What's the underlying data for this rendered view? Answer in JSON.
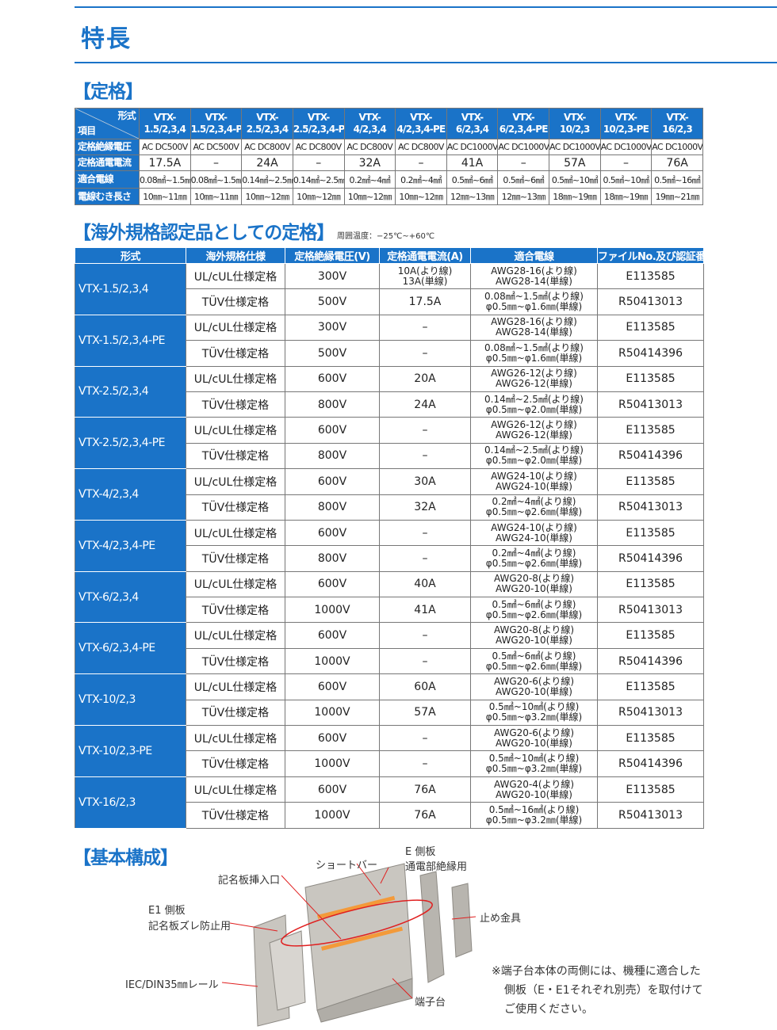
{
  "page_title": "特長",
  "section1": "【定格】",
  "spec_table": {
    "corner_top": "形式",
    "corner_bottom": "項目",
    "models": [
      [
        "VTX-",
        "1.5/2,3,4"
      ],
      [
        "VTX-",
        "1.5/2,3,4-PE"
      ],
      [
        "VTX-",
        "2.5/2,3,4"
      ],
      [
        "VTX-",
        "2.5/2,3,4-PE"
      ],
      [
        "VTX-",
        "4/2,3,4"
      ],
      [
        "VTX-",
        "4/2,3,4-PE"
      ],
      [
        "VTX-",
        "6/2,3,4"
      ],
      [
        "VTX-",
        "6/2,3,4-PE"
      ],
      [
        "VTX-",
        "10/2,3"
      ],
      [
        "VTX-",
        "10/2,3-PE"
      ],
      [
        "VTX-",
        "16/2,3"
      ]
    ],
    "rows": [
      {
        "label": "定格絶縁電圧",
        "values": [
          "AC DC500V",
          "AC DC500V",
          "AC DC800V",
          "AC DC800V",
          "AC DC800V",
          "AC DC800V",
          "AC DC1000V",
          "AC DC1000V",
          "AC DC1000V",
          "AC DC1000V",
          "AC DC1000V"
        ]
      },
      {
        "label": "定格通電電流",
        "values": [
          "17.5A",
          "–",
          "24A",
          "–",
          "32A",
          "–",
          "41A",
          "–",
          "57A",
          "–",
          "76A"
        ]
      },
      {
        "label": "適合電線",
        "values": [
          "0.08㎟~1.5㎟",
          "0.08㎟~1.5㎟",
          "0.14㎟~2.5㎟",
          "0.14㎟~2.5㎟",
          "0.2㎟~4㎟",
          "0.2㎟~4㎟",
          "0.5㎟~6㎟",
          "0.5㎟~6㎟",
          "0.5㎟~10㎟",
          "0.5㎟~10㎟",
          "0.5㎟~16㎟"
        ]
      },
      {
        "label": "電線むき長さ",
        "values": [
          "10㎜~11㎜",
          "10㎜~11㎜",
          "10㎜~12㎜",
          "10㎜~12㎜",
          "10㎜~12㎜",
          "10㎜~12㎜",
          "12㎜~13㎜",
          "12㎜~13㎜",
          "18㎜~19㎜",
          "18㎜~19㎜",
          "19㎜~21㎜"
        ]
      }
    ]
  },
  "section2": "【海外規格認定品としての定格】",
  "ambient_note": "周囲温度：−25℃~+60℃",
  "cert_table": {
    "headers": [
      "形式",
      "海外規格仕様",
      "定格絶縁電圧(V)",
      "定格通電電流(A)",
      "適合電線",
      "ファイルNo.及び認証番号"
    ],
    "groups": [
      {
        "model": "VTX-1.5/2,3,4",
        "rows": [
          {
            "spec": "UL/cUL仕様定格",
            "voltage": "300V",
            "current": [
              "10A(より線)",
              "13A(単線)"
            ],
            "wire": [
              "AWG28-16(より線)",
              "AWG28-14(単線)"
            ],
            "file": "E113585"
          },
          {
            "spec": "TÜV仕様定格",
            "voltage": "500V",
            "current": [
              "17.5A"
            ],
            "wire": [
              "0.08㎟~1.5㎟(より線)",
              "φ0.5㎜~φ1.6㎜(単線)"
            ],
            "file": "R50413013"
          }
        ]
      },
      {
        "model": "VTX-1.5/2,3,4-PE",
        "rows": [
          {
            "spec": "UL/cUL仕様定格",
            "voltage": "300V",
            "current": [
              "–"
            ],
            "wire": [
              "AWG28-16(より線)",
              "AWG28-14(単線)"
            ],
            "file": "E113585"
          },
          {
            "spec": "TÜV仕様定格",
            "voltage": "500V",
            "current": [
              "–"
            ],
            "wire": [
              "0.08㎟~1.5㎟(より線)",
              "φ0.5㎜~φ1.6㎜(単線)"
            ],
            "file": "R50414396"
          }
        ]
      },
      {
        "model": "VTX-2.5/2,3,4",
        "rows": [
          {
            "spec": "UL/cUL仕様定格",
            "voltage": "600V",
            "current": [
              "20A"
            ],
            "wire": [
              "AWG26-12(より線)",
              "AWG26-12(単線)"
            ],
            "file": "E113585"
          },
          {
            "spec": "TÜV仕様定格",
            "voltage": "800V",
            "current": [
              "24A"
            ],
            "wire": [
              "0.14㎟~2.5㎟(より線)",
              "φ0.5㎜~φ2.0㎜(単線)"
            ],
            "file": "R50413013"
          }
        ]
      },
      {
        "model": "VTX-2.5/2,3,4-PE",
        "rows": [
          {
            "spec": "UL/cUL仕様定格",
            "voltage": "600V",
            "current": [
              "–"
            ],
            "wire": [
              "AWG26-12(より線)",
              "AWG26-12(単線)"
            ],
            "file": "E113585"
          },
          {
            "spec": "TÜV仕様定格",
            "voltage": "800V",
            "current": [
              "–"
            ],
            "wire": [
              "0.14㎟~2.5㎟(より線)",
              "φ0.5㎜~φ2.0㎜(単線)"
            ],
            "file": "R50414396"
          }
        ]
      },
      {
        "model": "VTX-4/2,3,4",
        "rows": [
          {
            "spec": "UL/cUL仕様定格",
            "voltage": "600V",
            "current": [
              "30A"
            ],
            "wire": [
              "AWG24-10(より線)",
              "AWG24-10(単線)"
            ],
            "file": "E113585"
          },
          {
            "spec": "TÜV仕様定格",
            "voltage": "800V",
            "current": [
              "32A"
            ],
            "wire": [
              "0.2㎟~4㎟(より線)",
              "φ0.5㎜~φ2.6㎜(単線)"
            ],
            "file": "R50413013"
          }
        ]
      },
      {
        "model": "VTX-4/2,3,4-PE",
        "rows": [
          {
            "spec": "UL/cUL仕様定格",
            "voltage": "600V",
            "current": [
              "–"
            ],
            "wire": [
              "AWG24-10(より線)",
              "AWG24-10(単線)"
            ],
            "file": "E113585"
          },
          {
            "spec": "TÜV仕様定格",
            "voltage": "800V",
            "current": [
              "–"
            ],
            "wire": [
              "0.2㎟~4㎟(より線)",
              "φ0.5㎜~φ2.6㎜(単線)"
            ],
            "file": "R50414396"
          }
        ]
      },
      {
        "model": "VTX-6/2,3,4",
        "rows": [
          {
            "spec": "UL/cUL仕様定格",
            "voltage": "600V",
            "current": [
              "40A"
            ],
            "wire": [
              "AWG20-8(より線)",
              "AWG20-10(単線)"
            ],
            "file": "E113585"
          },
          {
            "spec": "TÜV仕様定格",
            "voltage": "1000V",
            "current": [
              "41A"
            ],
            "wire": [
              "0.5㎟~6㎟(より線)",
              "φ0.5㎜~φ2.6㎜(単線)"
            ],
            "file": "R50413013"
          }
        ]
      },
      {
        "model": "VTX-6/2,3,4-PE",
        "rows": [
          {
            "spec": "UL/cUL仕様定格",
            "voltage": "600V",
            "current": [
              "–"
            ],
            "wire": [
              "AWG20-8(より線)",
              "AWG20-10(単線)"
            ],
            "file": "E113585"
          },
          {
            "spec": "TÜV仕様定格",
            "voltage": "1000V",
            "current": [
              "–"
            ],
            "wire": [
              "0.5㎟~6㎟(より線)",
              "φ0.5㎜~φ2.6㎜(単線)"
            ],
            "file": "R50414396"
          }
        ]
      },
      {
        "model": "VTX-10/2,3",
        "rows": [
          {
            "spec": "UL/cUL仕様定格",
            "voltage": "600V",
            "current": [
              "60A"
            ],
            "wire": [
              "AWG20-6(より線)",
              "AWG20-10(単線)"
            ],
            "file": "E113585"
          },
          {
            "spec": "TÜV仕様定格",
            "voltage": "1000V",
            "current": [
              "57A"
            ],
            "wire": [
              "0.5㎟~10㎟(より線)",
              "φ0.5㎜~φ3.2㎜(単線)"
            ],
            "file": "R50413013"
          }
        ]
      },
      {
        "model": "VTX-10/2,3-PE",
        "rows": [
          {
            "spec": "UL/cUL仕様定格",
            "voltage": "600V",
            "current": [
              "–"
            ],
            "wire": [
              "AWG20-6(より線)",
              "AWG20-10(単線)"
            ],
            "file": "E113585"
          },
          {
            "spec": "TÜV仕様定格",
            "voltage": "1000V",
            "current": [
              "–"
            ],
            "wire": [
              "0.5㎟~10㎟(より線)",
              "φ0.5㎜~φ3.2㎜(単線)"
            ],
            "file": "R50414396"
          }
        ]
      },
      {
        "model": "VTX-16/2,3",
        "rows": [
          {
            "spec": "UL/cUL仕様定格",
            "voltage": "600V",
            "current": [
              "76A"
            ],
            "wire": [
              "AWG20-4(より線)",
              "AWG20-10(単線)"
            ],
            "file": "E113585"
          },
          {
            "spec": "TÜV仕様定格",
            "voltage": "1000V",
            "current": [
              "76A"
            ],
            "wire": [
              "0.5㎟~16㎟(より線)",
              "φ0.5㎜~φ3.2㎜(単線)"
            ],
            "file": "R50413013"
          }
        ]
      }
    ]
  },
  "section3": "【基本構成】",
  "labels": {
    "e_side": "E 側板",
    "e_side_sub": "通電部絶縁用",
    "short_bar": "ショートバー",
    "marker_slot": "記名板挿入口",
    "e1_side": "E1 側板",
    "e1_side_sub": "記名板ズレ防止用",
    "stopper": "止め金具",
    "rail": "IEC/DIN35㎜レール",
    "terminal": "端子台"
  },
  "footnote": [
    "※端子台本体の両側には、機種に適合した",
    "側板（E・E1それぞれ別売）を取付けて",
    "ご使用ください。"
  ],
  "colors": {
    "accent": "#1a73c8",
    "leader": "#e02020"
  }
}
